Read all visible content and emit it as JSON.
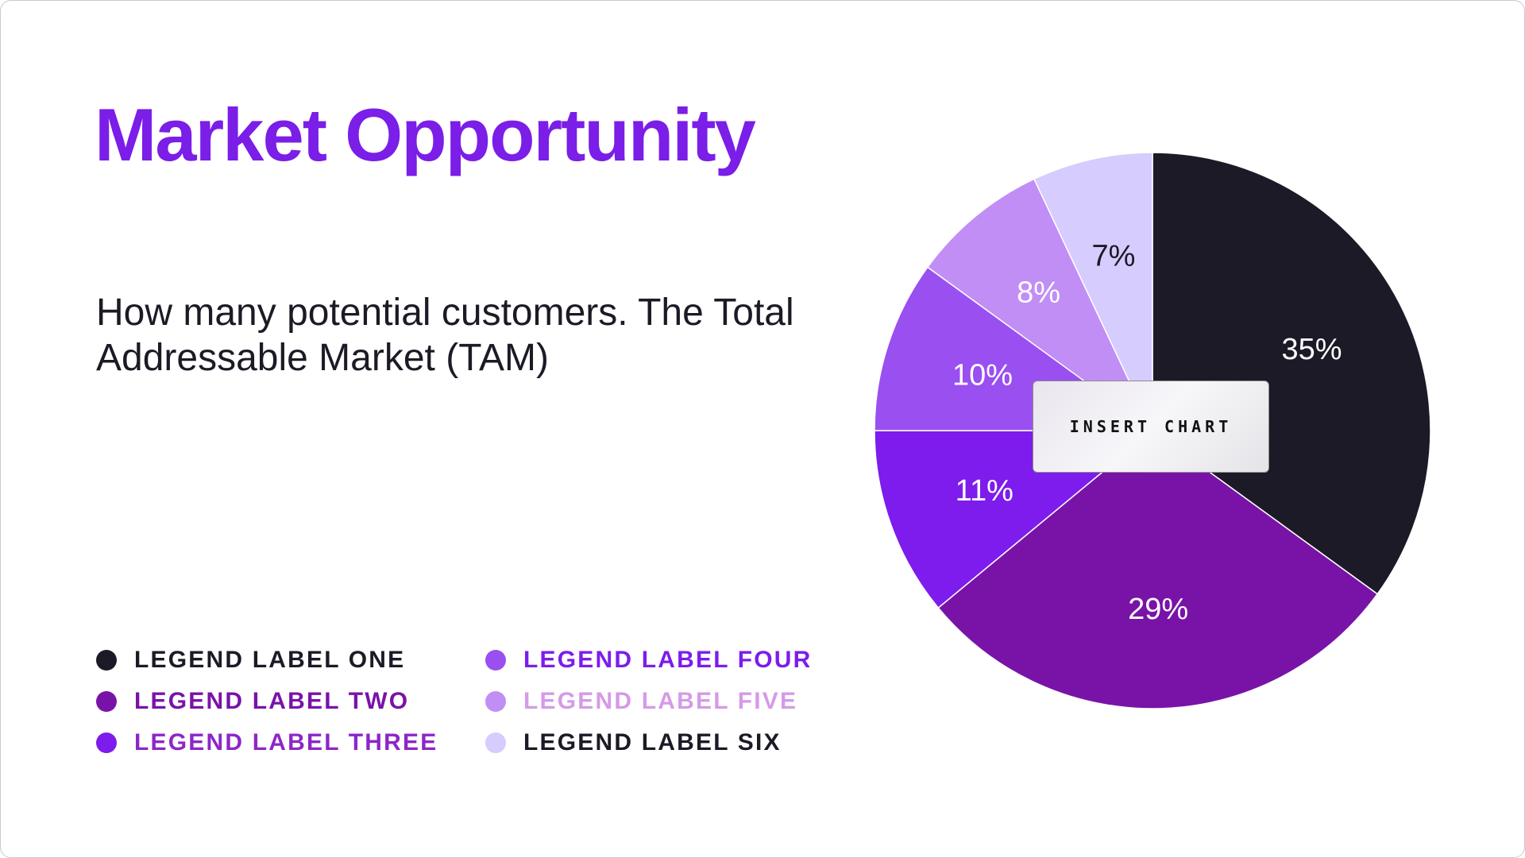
{
  "slide": {
    "title": "Market Opportunity",
    "subtitle": "How many potential customers. The Total Addressable Market (TAM)",
    "insert_chart_label": "INSERT CHART"
  },
  "colors": {
    "title": "#7a1ee8",
    "text": "#1d1a26"
  },
  "chart_data": {
    "type": "pie",
    "title": "",
    "categories": [
      "LEGEND LABEL ONE",
      "LEGEND LABEL TWO",
      "LEGEND LABEL THREE",
      "LEGEND LABEL FOUR",
      "LEGEND LABEL FIVE",
      "LEGEND LABEL SIX"
    ],
    "values": [
      35,
      29,
      11,
      10,
      8,
      7
    ],
    "labels": [
      "35%",
      "29%",
      "11%",
      "10%",
      "8%",
      "7%"
    ],
    "colors": [
      "#1c1a26",
      "#7913a8",
      "#7d1cec",
      "#9a4ff1",
      "#c18ef6",
      "#d6ccfd"
    ],
    "label_colors": [
      "#ffffff",
      "#ffffff",
      "#ffffff",
      "#ffffff",
      "#ffffff",
      "#1c1a26"
    ],
    "legend_text_colors": [
      "#1c1a26",
      "#7913a8",
      "#8d26c8",
      "#7d1cec",
      "#d59ae8",
      "#1c1a26"
    ],
    "legend_position": "bottom-left",
    "start_angle": "12 o'clock, clockwise"
  }
}
